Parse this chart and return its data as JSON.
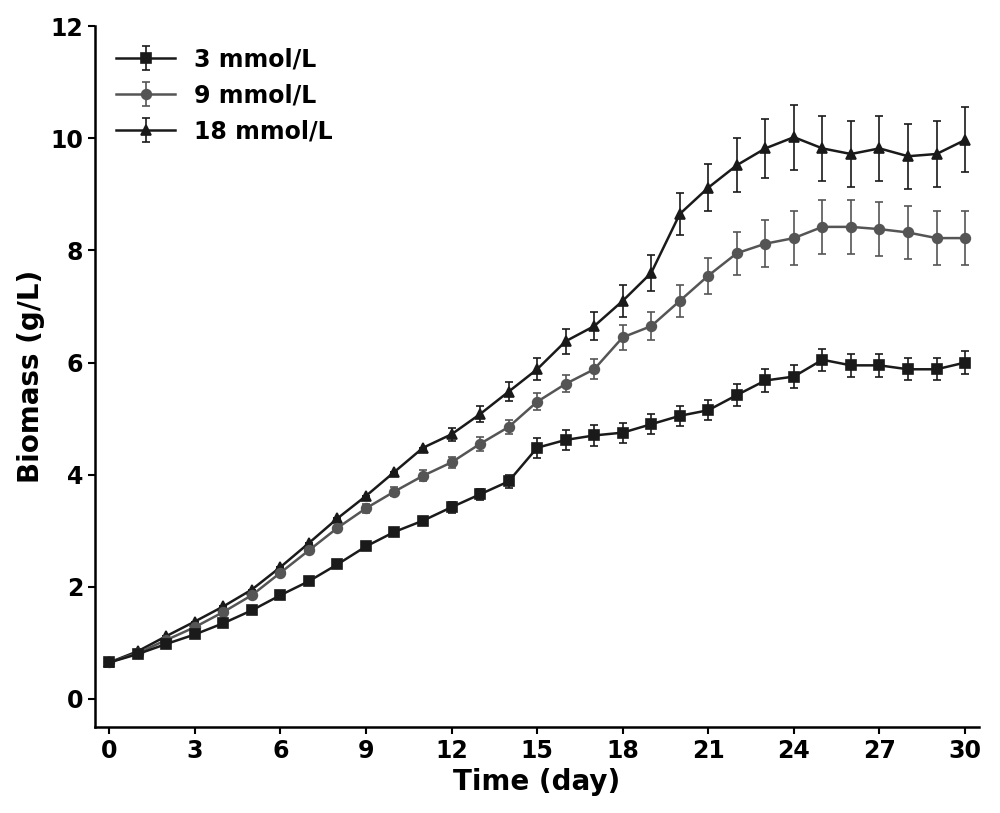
{
  "title": "",
  "xlabel": "Time (day)",
  "ylabel": "Biomass (g/L)",
  "xlim": [
    -0.5,
    30.5
  ],
  "ylim": [
    -0.5,
    12
  ],
  "yticks": [
    0,
    2,
    4,
    6,
    8,
    10,
    12
  ],
  "xticks": [
    0,
    3,
    6,
    9,
    12,
    15,
    18,
    21,
    24,
    27,
    30
  ],
  "series": [
    {
      "label": "3 mmol/L",
      "marker": "s",
      "color": "#1a1a1a",
      "x": [
        0,
        1,
        2,
        3,
        4,
        5,
        6,
        7,
        8,
        9,
        10,
        11,
        12,
        13,
        14,
        15,
        16,
        17,
        18,
        19,
        20,
        21,
        22,
        23,
        24,
        25,
        26,
        27,
        28,
        29,
        30
      ],
      "y": [
        0.65,
        0.8,
        0.98,
        1.15,
        1.35,
        1.58,
        1.85,
        2.1,
        2.4,
        2.72,
        2.98,
        3.18,
        3.42,
        3.65,
        3.88,
        4.48,
        4.62,
        4.7,
        4.75,
        4.9,
        5.05,
        5.15,
        5.42,
        5.68,
        5.75,
        6.05,
        5.95,
        5.95,
        5.88,
        5.88,
        6.0
      ],
      "yerr_lo": [
        0.0,
        0.0,
        0.0,
        0.0,
        0.0,
        0.0,
        0.0,
        0.0,
        0.0,
        0.0,
        0.0,
        0.0,
        0.1,
        0.1,
        0.12,
        0.18,
        0.18,
        0.18,
        0.18,
        0.18,
        0.18,
        0.18,
        0.2,
        0.2,
        0.2,
        0.2,
        0.2,
        0.2,
        0.2,
        0.2,
        0.2
      ],
      "yerr_hi": [
        0.0,
        0.0,
        0.0,
        0.0,
        0.0,
        0.0,
        0.0,
        0.0,
        0.0,
        0.0,
        0.0,
        0.0,
        0.1,
        0.1,
        0.12,
        0.18,
        0.18,
        0.18,
        0.18,
        0.18,
        0.18,
        0.18,
        0.2,
        0.2,
        0.2,
        0.2,
        0.2,
        0.2,
        0.2,
        0.2,
        0.2
      ]
    },
    {
      "label": "9 mmol/L",
      "marker": "o",
      "color": "#555555",
      "x": [
        0,
        1,
        2,
        3,
        4,
        5,
        6,
        7,
        8,
        9,
        10,
        11,
        12,
        13,
        14,
        15,
        16,
        17,
        18,
        19,
        20,
        21,
        22,
        23,
        24,
        25,
        26,
        27,
        28,
        29,
        30
      ],
      "y": [
        0.65,
        0.82,
        1.05,
        1.28,
        1.55,
        1.85,
        2.25,
        2.65,
        3.05,
        3.4,
        3.7,
        3.98,
        4.22,
        4.55,
        4.85,
        5.3,
        5.62,
        5.88,
        6.45,
        6.65,
        7.1,
        7.55,
        7.95,
        8.12,
        8.22,
        8.42,
        8.42,
        8.38,
        8.32,
        8.22,
        8.22
      ],
      "yerr_lo": [
        0.0,
        0.0,
        0.0,
        0.0,
        0.0,
        0.0,
        0.0,
        0.0,
        0.0,
        0.08,
        0.08,
        0.1,
        0.1,
        0.12,
        0.12,
        0.15,
        0.15,
        0.18,
        0.22,
        0.25,
        0.28,
        0.32,
        0.38,
        0.42,
        0.48,
        0.48,
        0.48,
        0.48,
        0.48,
        0.48,
        0.48
      ],
      "yerr_hi": [
        0.0,
        0.0,
        0.0,
        0.0,
        0.0,
        0.0,
        0.0,
        0.0,
        0.0,
        0.08,
        0.08,
        0.1,
        0.1,
        0.12,
        0.12,
        0.15,
        0.15,
        0.18,
        0.22,
        0.25,
        0.28,
        0.32,
        0.38,
        0.42,
        0.48,
        0.48,
        0.48,
        0.48,
        0.48,
        0.48,
        0.48
      ]
    },
    {
      "label": "18 mmol/L",
      "marker": "^",
      "color": "#1a1a1a",
      "x": [
        0,
        1,
        2,
        3,
        4,
        5,
        6,
        7,
        8,
        9,
        10,
        11,
        12,
        13,
        14,
        15,
        16,
        17,
        18,
        19,
        20,
        21,
        22,
        23,
        24,
        25,
        26,
        27,
        28,
        29,
        30
      ],
      "y": [
        0.65,
        0.85,
        1.12,
        1.38,
        1.65,
        1.95,
        2.35,
        2.78,
        3.22,
        3.62,
        4.05,
        4.48,
        4.72,
        5.08,
        5.48,
        5.88,
        6.38,
        6.65,
        7.1,
        7.6,
        8.65,
        9.12,
        9.52,
        9.82,
        10.02,
        9.82,
        9.72,
        9.82,
        9.68,
        9.72,
        9.97
      ],
      "yerr_lo": [
        0.0,
        0.0,
        0.0,
        0.0,
        0.0,
        0.0,
        0.0,
        0.0,
        0.0,
        0.0,
        0.0,
        0.0,
        0.12,
        0.14,
        0.17,
        0.2,
        0.22,
        0.25,
        0.28,
        0.32,
        0.38,
        0.42,
        0.48,
        0.52,
        0.58,
        0.58,
        0.58,
        0.58,
        0.58,
        0.58,
        0.58
      ],
      "yerr_hi": [
        0.0,
        0.0,
        0.0,
        0.0,
        0.0,
        0.0,
        0.0,
        0.0,
        0.0,
        0.0,
        0.0,
        0.0,
        0.12,
        0.14,
        0.17,
        0.2,
        0.22,
        0.25,
        0.28,
        0.32,
        0.38,
        0.42,
        0.48,
        0.52,
        0.58,
        0.58,
        0.58,
        0.58,
        0.58,
        0.58,
        0.58
      ]
    }
  ],
  "legend_loc": "upper left",
  "marker_size": 7,
  "linewidth": 1.8,
  "capsize": 3,
  "elinewidth": 1.2,
  "xlabel_fontsize": 20,
  "ylabel_fontsize": 20,
  "tick_fontsize": 17,
  "legend_fontsize": 17
}
